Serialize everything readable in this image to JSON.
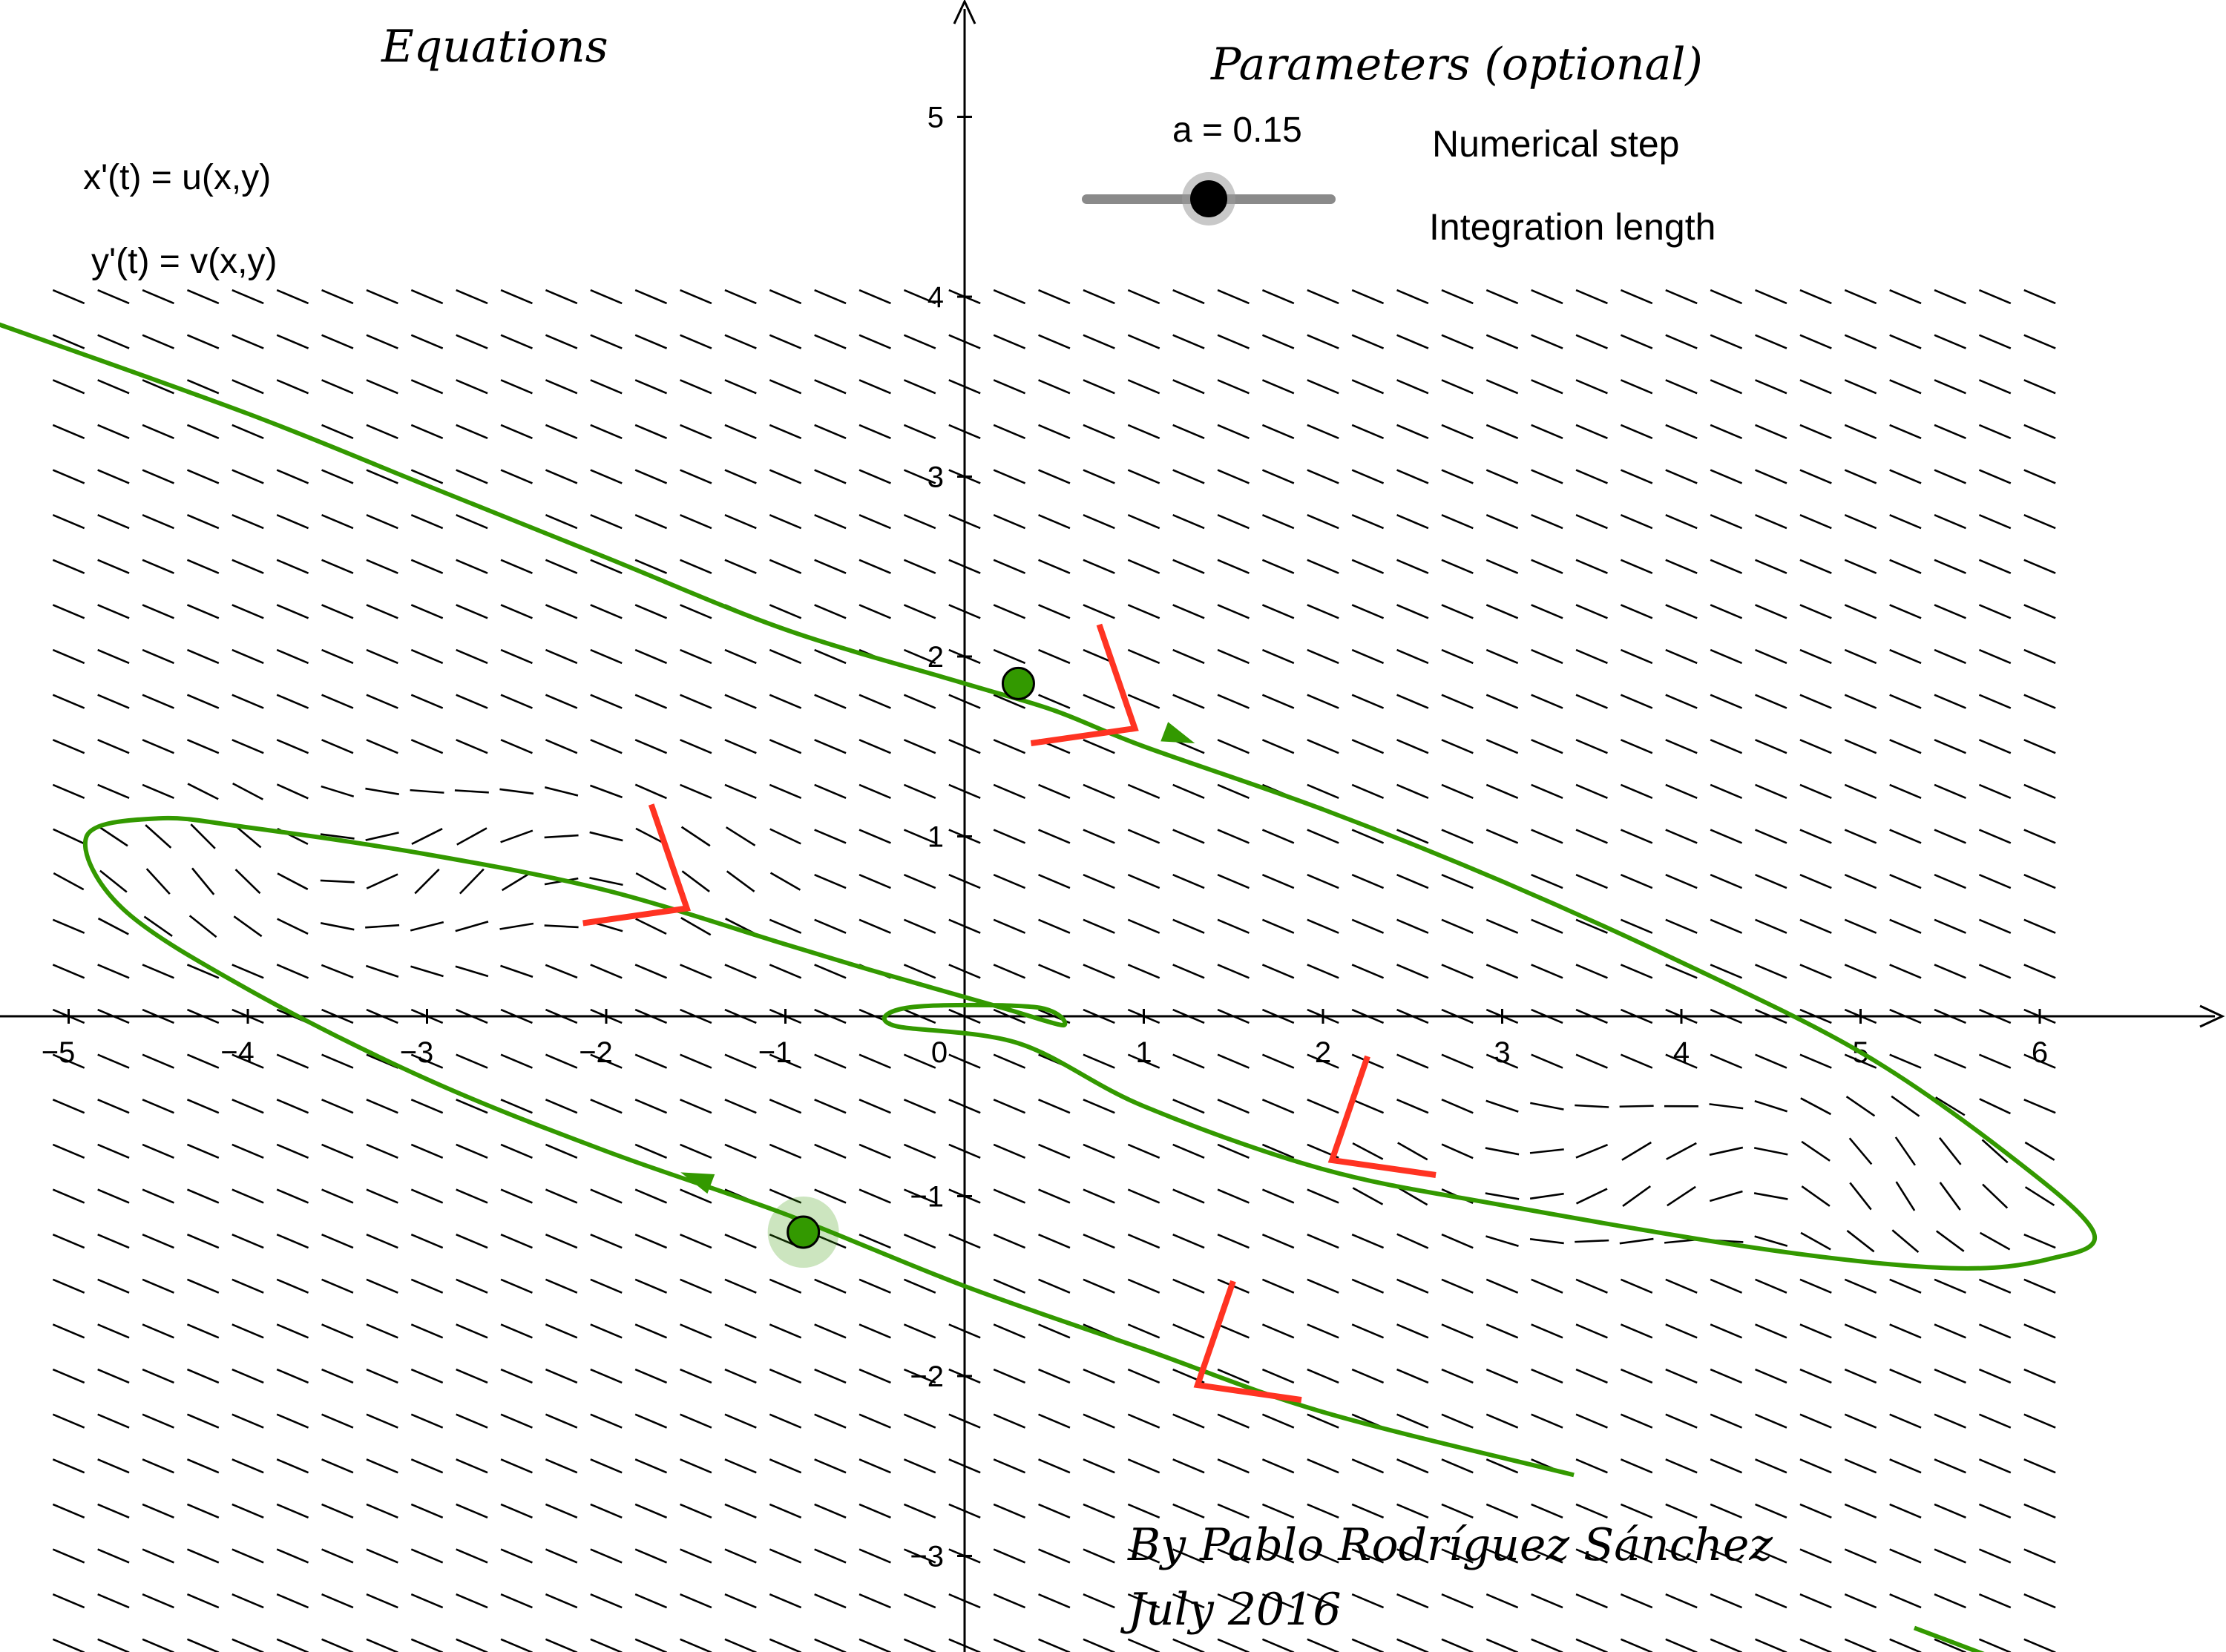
{
  "equations": {
    "title": "Equations",
    "x_eq": "x'(t) = u(x,y)",
    "y_eq": "y'(t) = v(x,y)"
  },
  "parameters": {
    "title": "Parameters (optional)",
    "slider_label": "a = 0.15",
    "slider_value": 0.15,
    "numerical_step": "Numerical step",
    "integration_length": "Integration length"
  },
  "credit": {
    "line1": "By Pablo Rodríguez Sánchez",
    "line2": "July 2016"
  },
  "colors": {
    "trajectory": "#339900",
    "arrowhead_marker": "#ff3322",
    "point_fill": "#339900",
    "axis": "#000000",
    "slope": "#000000"
  },
  "chart_data": {
    "type": "line",
    "xlim": [
      -5.3,
      7.0
    ],
    "ylim": [
      -3.6,
      5.6
    ],
    "x_ticks": [
      "−5",
      "−4",
      "−3",
      "−2",
      "−1",
      "0",
      "1",
      "2",
      "3",
      "4",
      "5",
      "6"
    ],
    "y_ticks": [
      "−3",
      "−2",
      "−1",
      "1",
      "2",
      "3",
      "4",
      "5"
    ],
    "x_tick_values": [
      -5,
      -4,
      -3,
      -2,
      -1,
      0,
      1,
      2,
      3,
      4,
      5,
      6
    ],
    "y_tick_values": [
      -3,
      -2,
      -1,
      1,
      2,
      3,
      4,
      5
    ],
    "slope_field": {
      "x_range": [
        -5,
        6
      ],
      "y_range": [
        -3.5,
        4
      ],
      "step": 0.25
    },
    "trajectory": [
      [
        -5.4,
        3.85
      ],
      [
        -4,
        3.35
      ],
      [
        -3,
        2.95
      ],
      [
        -2,
        2.55
      ],
      [
        -1,
        2.15
      ],
      [
        0,
        1.85
      ],
      [
        0.5,
        1.7
      ],
      [
        1,
        1.5
      ],
      [
        2,
        1.15
      ],
      [
        3,
        0.75
      ],
      [
        4,
        0.3
      ],
      [
        5,
        -0.2
      ],
      [
        5.8,
        -0.75
      ],
      [
        6.3,
        -1.2
      ],
      [
        6.05,
        -1.35
      ],
      [
        5.5,
        -1.4
      ],
      [
        4.5,
        -1.3
      ],
      [
        3,
        -1.05
      ],
      [
        2,
        -0.85
      ],
      [
        1,
        -0.5
      ],
      [
        0.3,
        -0.15
      ],
      [
        -0.4,
        -0.05
      ],
      [
        -0.3,
        0.05
      ],
      [
        0.4,
        0.05
      ],
      [
        0.55,
        -0.05
      ],
      [
        0.2,
        0.05
      ],
      [
        -0.5,
        0.25
      ],
      [
        -1,
        0.4
      ],
      [
        -2,
        0.7
      ],
      [
        -3,
        0.9
      ],
      [
        -4,
        1.05
      ],
      [
        -4.5,
        1.1
      ],
      [
        -4.9,
        1.0
      ],
      [
        -4.7,
        0.6
      ],
      [
        -4,
        0.15
      ],
      [
        -3,
        -0.35
      ],
      [
        -2,
        -0.75
      ],
      [
        -1,
        -1.1
      ],
      [
        0,
        -1.5
      ],
      [
        1,
        -1.85
      ],
      [
        2,
        -2.2
      ],
      [
        3.4,
        -2.55
      ]
    ],
    "trajectory_tail": [
      [
        5.3,
        -3.4
      ],
      [
        5.7,
        -3.55
      ]
    ],
    "points": [
      {
        "x": 0.3,
        "y": 1.85,
        "selected": false
      },
      {
        "x": -0.9,
        "y": -1.2,
        "selected": true
      }
    ],
    "direction_arrows": [
      {
        "x": 1.2,
        "y": 1.55,
        "dx": 1,
        "dy": -0.38
      },
      {
        "x": -1.5,
        "y": -0.9,
        "dx": -1,
        "dy": 0.38
      }
    ],
    "eigen_markers": [
      {
        "x": 0.95,
        "y": 1.6,
        "dir": "right"
      },
      {
        "x": -1.55,
        "y": 0.6,
        "dir": "right"
      },
      {
        "x": 2.05,
        "y": -0.8,
        "dir": "left"
      },
      {
        "x": 1.3,
        "y": -2.05,
        "dir": "left"
      }
    ]
  }
}
